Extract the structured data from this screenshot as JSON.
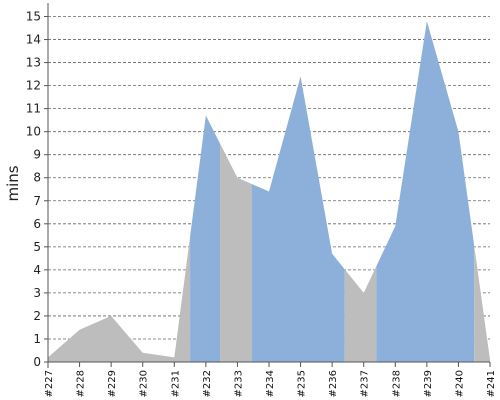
{
  "chart_data": {
    "type": "area",
    "title": "",
    "xlabel": "",
    "ylabel": "mins",
    "ylim": [
      0,
      15.5
    ],
    "yticks": [
      0,
      1,
      2,
      3,
      4,
      5,
      6,
      7,
      8,
      9,
      10,
      11,
      12,
      13,
      14,
      15
    ],
    "categories": [
      "#227",
      "#228",
      "#229",
      "#230",
      "#231",
      "#232",
      "#233",
      "#234",
      "#235",
      "#236",
      "#237",
      "#238",
      "#239",
      "#240",
      "#241"
    ],
    "values": [
      0.2,
      1.4,
      2.0,
      0.4,
      0.2,
      10.7,
      8.0,
      7.4,
      12.4,
      4.7,
      3.0,
      5.9,
      14.8,
      10.0,
      0.1
    ],
    "bands": [
      {
        "from": 227,
        "to": 231.5,
        "color": "#bdbdbd"
      },
      {
        "from": 231.5,
        "to": 232.45,
        "color": "#8db0da"
      },
      {
        "from": 232.45,
        "to": 233.45,
        "color": "#bdbdbd"
      },
      {
        "from": 233.45,
        "to": 236.4,
        "color": "#8db0da"
      },
      {
        "from": 236.4,
        "to": 237.4,
        "color": "#bdbdbd"
      },
      {
        "from": 237.4,
        "to": 240.5,
        "color": "#8db0da"
      },
      {
        "from": 240.5,
        "to": 241,
        "color": "#bdbdbd"
      }
    ],
    "grid": true,
    "colors": {
      "gray": "#bdbdbd",
      "blue": "#8db0da",
      "grid": "#666666",
      "axis": "#555555"
    }
  }
}
